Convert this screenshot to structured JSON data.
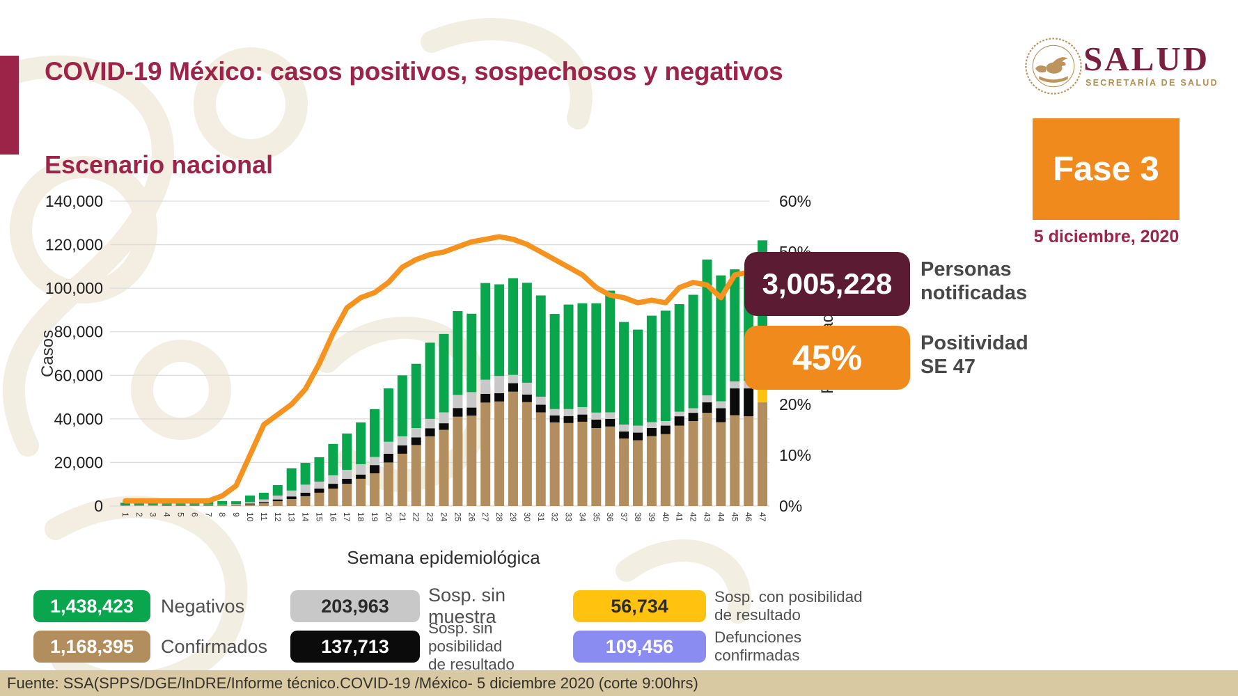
{
  "header": {
    "title": "COVID-19 México: casos positivos, sospechosos y negativos"
  },
  "section_title": "Escenario nacional",
  "logo": {
    "name": "SALUD",
    "subtitle": "SECRETARÍA DE SALUD",
    "seal_color": "#bc955c",
    "name_color": "#7b1f3e"
  },
  "phase": {
    "label": "Fase 3",
    "date": "5 diciembre, 2020",
    "bg": "#f18a1d"
  },
  "stats": [
    {
      "value": "3,005,228",
      "label_lines": [
        "Personas",
        "notificadas"
      ],
      "bg": "#5b1b33"
    },
    {
      "value": "45%",
      "label_lines": [
        "Positividad",
        "SE 47"
      ],
      "bg": "#f18a1d"
    }
  ],
  "chart_data": {
    "type": "stacked-bar+line",
    "title": "Escenario nacional",
    "xlabel": "Semana epidemiológica",
    "ylabel": "Casos",
    "y2label": "Positividad",
    "ylim": [
      0,
      140000
    ],
    "y2lim": [
      0,
      60
    ],
    "ytick_step": 20000,
    "y2tick_step": 10,
    "grid": true,
    "categories": [
      "1",
      "2",
      "3",
      "4",
      "5",
      "6",
      "7",
      "8",
      "9",
      "10",
      "11",
      "12",
      "13",
      "14",
      "15",
      "16",
      "17",
      "18",
      "19",
      "20",
      "21",
      "22",
      "23",
      "24",
      "25",
      "26",
      "27",
      "28",
      "29",
      "30",
      "31",
      "32",
      "33",
      "34",
      "35",
      "36",
      "37",
      "38",
      "39",
      "40",
      "41",
      "42",
      "43",
      "44",
      "45",
      "46",
      "47"
    ],
    "series": [
      {
        "name": "Confirmados",
        "color": "#b28e5f",
        "values": [
          100,
          100,
          150,
          200,
          200,
          200,
          250,
          300,
          400,
          800,
          1300,
          2200,
          3200,
          4500,
          6100,
          8000,
          10200,
          12500,
          15000,
          20000,
          24000,
          28000,
          32000,
          35000,
          41000,
          41500,
          47500,
          48000,
          52500,
          47700,
          43000,
          38400,
          38100,
          38700,
          35800,
          36500,
          31000,
          30200,
          32100,
          33000,
          36900,
          39000,
          42800,
          38500,
          41700,
          41200,
          47600
        ]
      },
      {
        "name": "Sosp. con posibilidad de resultado",
        "color": "#ffc20e",
        "values": [
          0,
          0,
          0,
          0,
          0,
          0,
          0,
          0,
          0,
          0,
          0,
          0,
          0,
          0,
          0,
          0,
          0,
          0,
          0,
          0,
          0,
          0,
          0,
          0,
          0,
          0,
          0,
          0,
          0,
          0,
          0,
          0,
          0,
          0,
          0,
          0,
          0,
          0,
          0,
          0,
          0,
          0,
          0,
          0,
          0,
          0,
          12200
        ]
      },
      {
        "name": "Sosp. sin posibilidad de resultado",
        "color": "#0b0b0b",
        "values": [
          50,
          50,
          50,
          100,
          100,
          100,
          100,
          100,
          150,
          300,
          500,
          800,
          1200,
          1600,
          1900,
          2200,
          2300,
          1900,
          3800,
          4000,
          3800,
          3500,
          3700,
          3000,
          4000,
          3700,
          4000,
          3800,
          3900,
          3500,
          3500,
          3200,
          3200,
          3300,
          3900,
          3500,
          3200,
          3500,
          3700,
          3900,
          4300,
          3800,
          4800,
          6400,
          12300,
          12800,
          1300
        ]
      },
      {
        "name": "Sosp. sin muestra",
        "color": "#c8c8c8",
        "values": [
          150,
          200,
          200,
          200,
          200,
          200,
          250,
          250,
          350,
          700,
          1200,
          1800,
          2700,
          3700,
          3200,
          3900,
          4100,
          4800,
          3700,
          5500,
          4200,
          4300,
          4300,
          5000,
          6000,
          7100,
          6500,
          7900,
          3800,
          5400,
          3700,
          2900,
          3200,
          3400,
          3200,
          3000,
          3200,
          3200,
          2700,
          2100,
          2100,
          2100,
          3200,
          3200,
          3200,
          3500,
          3000
        ]
      },
      {
        "name": "Negativos",
        "color": "#0aa64e",
        "values": [
          1200,
          1750,
          2000,
          2200,
          2000,
          1800,
          1800,
          1650,
          1300,
          3000,
          3100,
          4800,
          10200,
          10000,
          11200,
          14400,
          16700,
          19200,
          22000,
          24500,
          28000,
          29500,
          35000,
          36000,
          38500,
          36000,
          44400,
          42100,
          44400,
          45900,
          46500,
          43700,
          48000,
          47700,
          50200,
          55900,
          47100,
          44100,
          48900,
          50700,
          49400,
          52100,
          62400,
          57800,
          51500,
          50400,
          57900
        ]
      }
    ],
    "line": {
      "name": "Positividad (%)",
      "color": "#f6921e",
      "values": [
        1,
        1,
        1,
        1,
        1,
        1,
        1,
        2,
        4,
        10,
        16,
        18,
        20,
        23,
        28,
        34,
        39,
        41,
        42,
        44,
        47,
        48.5,
        49.5,
        50,
        51,
        52,
        52.5,
        53,
        52.5,
        51.5,
        50,
        48.5,
        47,
        45.5,
        43,
        41.5,
        41,
        40,
        40.5,
        40,
        43,
        44,
        43.5,
        41,
        45.5,
        46,
        45
      ]
    },
    "legend_position": "bottom"
  },
  "legend": {
    "items": [
      {
        "value": "1,438,423",
        "label_lines": [
          "Negativos"
        ],
        "bg": "#0aa64e",
        "fg": "#ffffff",
        "small": false
      },
      {
        "value": "203,963",
        "label_lines": [
          "Sosp. sin muestra"
        ],
        "bg": "#c8c8c8",
        "fg": "#2b2b2b",
        "small": false
      },
      {
        "value": "56,734",
        "label_lines": [
          "Sosp. con posibilidad",
          "de resultado"
        ],
        "bg": "#ffc20e",
        "fg": "#2b2b2b",
        "small": true
      },
      {
        "value": "1,168,395",
        "label_lines": [
          "Confirmados"
        ],
        "bg": "#b28e5f",
        "fg": "#ffffff",
        "small": false
      },
      {
        "value": "137,713",
        "label_lines": [
          "Sosp. sin posibilidad",
          "de resultado"
        ],
        "bg": "#0b0b0b",
        "fg": "#ffffff",
        "small": true
      },
      {
        "value": "109,456",
        "label_lines": [
          "Defunciones",
          "confirmadas"
        ],
        "bg": "#8a8cf2",
        "fg": "#ffffff",
        "small": true
      }
    ]
  },
  "footer": {
    "source": "Fuente: SSA(SPPS/DGE/InDRE/Informe técnico.COVID-19 /México- 5 diciembre 2020 (corte 9:00hrs)"
  }
}
